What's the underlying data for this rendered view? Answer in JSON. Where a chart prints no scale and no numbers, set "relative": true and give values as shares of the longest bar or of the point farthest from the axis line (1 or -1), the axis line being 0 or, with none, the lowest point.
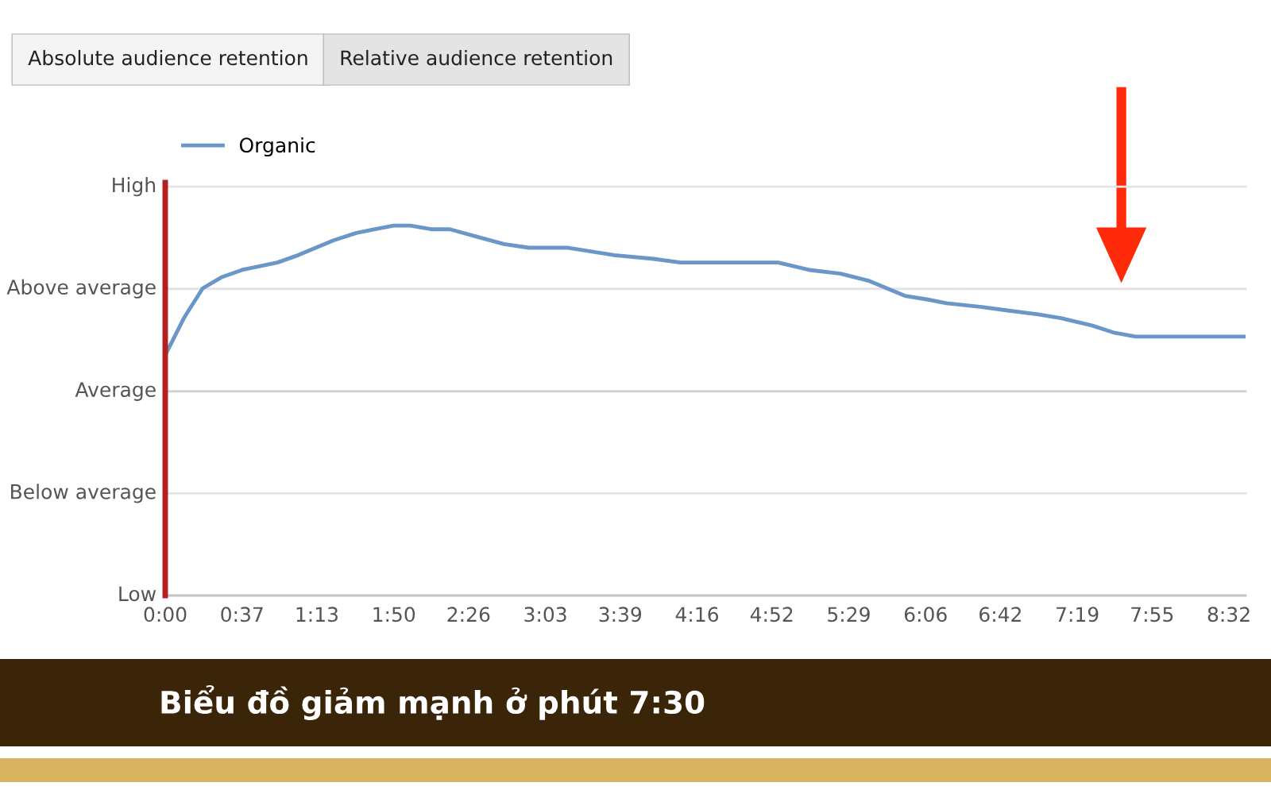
{
  "chart_data": {
    "type": "line",
    "title": "Biểu đồ giảm mạnh ở phút 7:30",
    "annotations": [
      "Absolute audience retention",
      "Relative audience retention",
      "Low"
    ],
    "relative": true,
    "x": [
      0,
      9,
      18,
      27,
      37,
      54,
      64,
      81,
      92,
      101,
      110,
      118,
      128,
      137,
      150,
      163,
      175,
      194,
      216,
      235,
      248,
      269,
      282,
      295,
      310,
      325,
      339,
      356,
      367,
      376,
      393,
      406,
      420,
      431,
      446,
      457,
      467,
      476,
      491,
      504,
      520
    ],
    "series": [
      {
        "name": "Organic",
        "color": "#6a96c8",
        "values": [
          0.65,
          0.75,
          0.83,
          0.86,
          0.88,
          0.9,
          0.92,
          0.96,
          0.98,
          0.99,
          1.0,
          1.0,
          0.99,
          0.99,
          0.97,
          0.95,
          0.94,
          0.94,
          0.92,
          0.91,
          0.9,
          0.9,
          0.9,
          0.9,
          0.88,
          0.87,
          0.85,
          0.81,
          0.8,
          0.79,
          0.78,
          0.77,
          0.76,
          0.75,
          0.73,
          0.71,
          0.7,
          0.7,
          0.7,
          0.7,
          0.7
        ]
      }
    ],
    "xlim": [
      0,
      520
    ],
    "xticks": [
      {
        "value": 0,
        "label": "0:00"
      },
      {
        "value": 37,
        "label": "0:37"
      },
      {
        "value": 73,
        "label": "1:13"
      },
      {
        "value": 110,
        "label": "1:50"
      },
      {
        "value": 146,
        "label": "2:26"
      },
      {
        "value": 183,
        "label": "3:03"
      },
      {
        "value": 219,
        "label": "3:39"
      },
      {
        "value": 256,
        "label": "4:16"
      },
      {
        "value": 292,
        "label": "4:52"
      },
      {
        "value": 329,
        "label": "5:29"
      },
      {
        "value": 366,
        "label": "6:06"
      },
      {
        "value": 402,
        "label": "6:42"
      },
      {
        "value": 439,
        "label": "7:19"
      },
      {
        "value": 475,
        "label": "7:55"
      },
      {
        "value": 512,
        "label": "8:32"
      }
    ],
    "ref_lines": [
      {
        "axis": "x",
        "value": 0,
        "color": "#b22222"
      },
      {
        "axis": "y",
        "value": 1.105,
        "label": "High",
        "color": "#e4e4e4"
      },
      {
        "axis": "y",
        "value": 0.829,
        "label": "Above average",
        "color": "#e4e4e4"
      },
      {
        "axis": "y",
        "value": 0.552,
        "label": "Average",
        "color": "#d0d0d0"
      },
      {
        "axis": "y",
        "value": 0.276,
        "label": "Below average",
        "color": "#e4e4e4"
      }
    ],
    "legend": "top left",
    "marker": "none",
    "line_style": "solid"
  }
}
